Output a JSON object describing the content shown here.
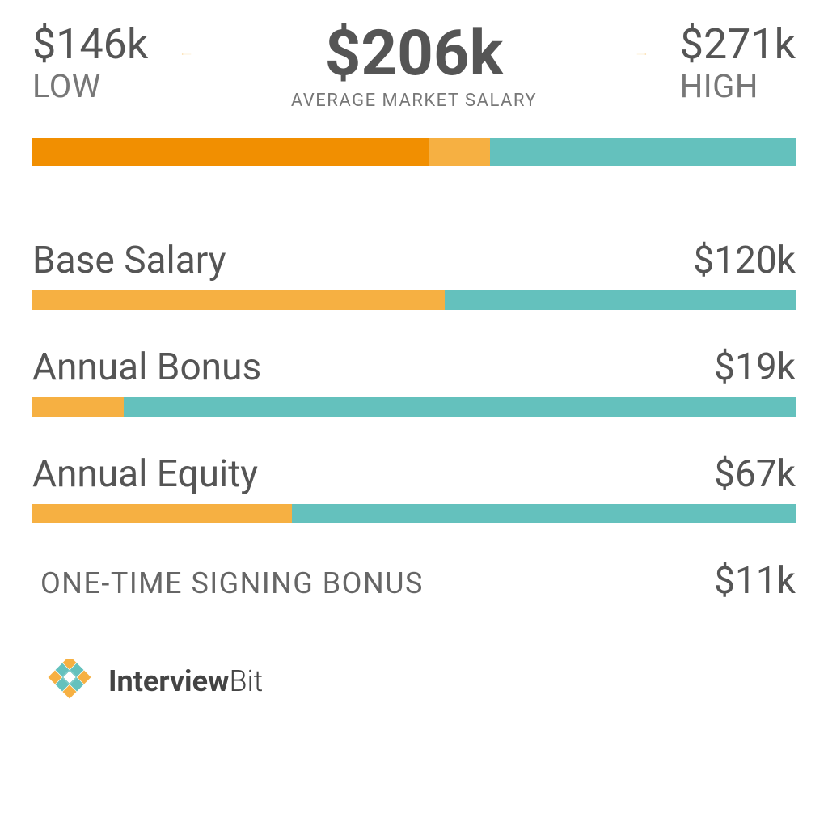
{
  "colors": {
    "orange_dark": "#f18f01",
    "orange_light": "#f6b042",
    "teal": "#64c1bd",
    "text_dark": "#555555",
    "text_mid": "#777777",
    "arrow": "#f6b042"
  },
  "range": {
    "low_value": "$146k",
    "low_label": "LOW",
    "avg_value": "$206k",
    "avg_label": "AVERAGE MARKET SALARY",
    "high_value": "$271k",
    "high_label": "HIGH",
    "arrow_width": 115
  },
  "tri_bar": {
    "height": 34,
    "segments": [
      {
        "color": "#f18f01",
        "pct": 52
      },
      {
        "color": "#f6b042",
        "pct": 8
      },
      {
        "color": "#64c1bd",
        "pct": 40
      }
    ]
  },
  "breakdowns": [
    {
      "label": "Base Salary",
      "value": "$120k",
      "bar": {
        "fill_color": "#f6b042",
        "fill_pct": 54,
        "rest_color": "#64c1bd"
      }
    },
    {
      "label": "Annual Bonus",
      "value": "$19k",
      "bar": {
        "fill_color": "#f6b042",
        "fill_pct": 12,
        "rest_color": "#64c1bd"
      }
    },
    {
      "label": "Annual Equity",
      "value": "$67k",
      "bar": {
        "fill_color": "#f6b042",
        "fill_pct": 34,
        "rest_color": "#64c1bd"
      }
    }
  ],
  "signing": {
    "label": "ONE-TIME SIGNING BONUS",
    "value": "$11k"
  },
  "logo": {
    "bold": "Interview",
    "light": "Bit",
    "mark_teal": "#64c1bd",
    "mark_gold": "#f6b042"
  }
}
